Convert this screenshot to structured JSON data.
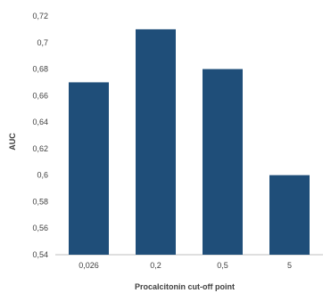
{
  "chart_data": {
    "type": "bar",
    "title": "",
    "xlabel": "Procalcitonin cut-off point",
    "ylabel": "AUC",
    "categories": [
      "0,026",
      "0,2",
      "0,5",
      "5"
    ],
    "values": [
      0.67,
      0.71,
      0.68,
      0.6
    ],
    "ylim": [
      0.54,
      0.72
    ],
    "yticks": [
      0.54,
      0.56,
      0.58,
      0.6,
      0.62,
      0.64,
      0.66,
      0.68,
      0.7,
      0.72
    ],
    "ytick_labels": [
      "0,54",
      "0,56",
      "0,58",
      "0,6",
      "0,62",
      "0,64",
      "0,66",
      "0,68",
      "0,7",
      "0,72"
    ],
    "grid": false,
    "legend": "none",
    "colors": {
      "bar": "#1f4e79",
      "axis": "#bfbfbf",
      "text": "#404040"
    }
  }
}
